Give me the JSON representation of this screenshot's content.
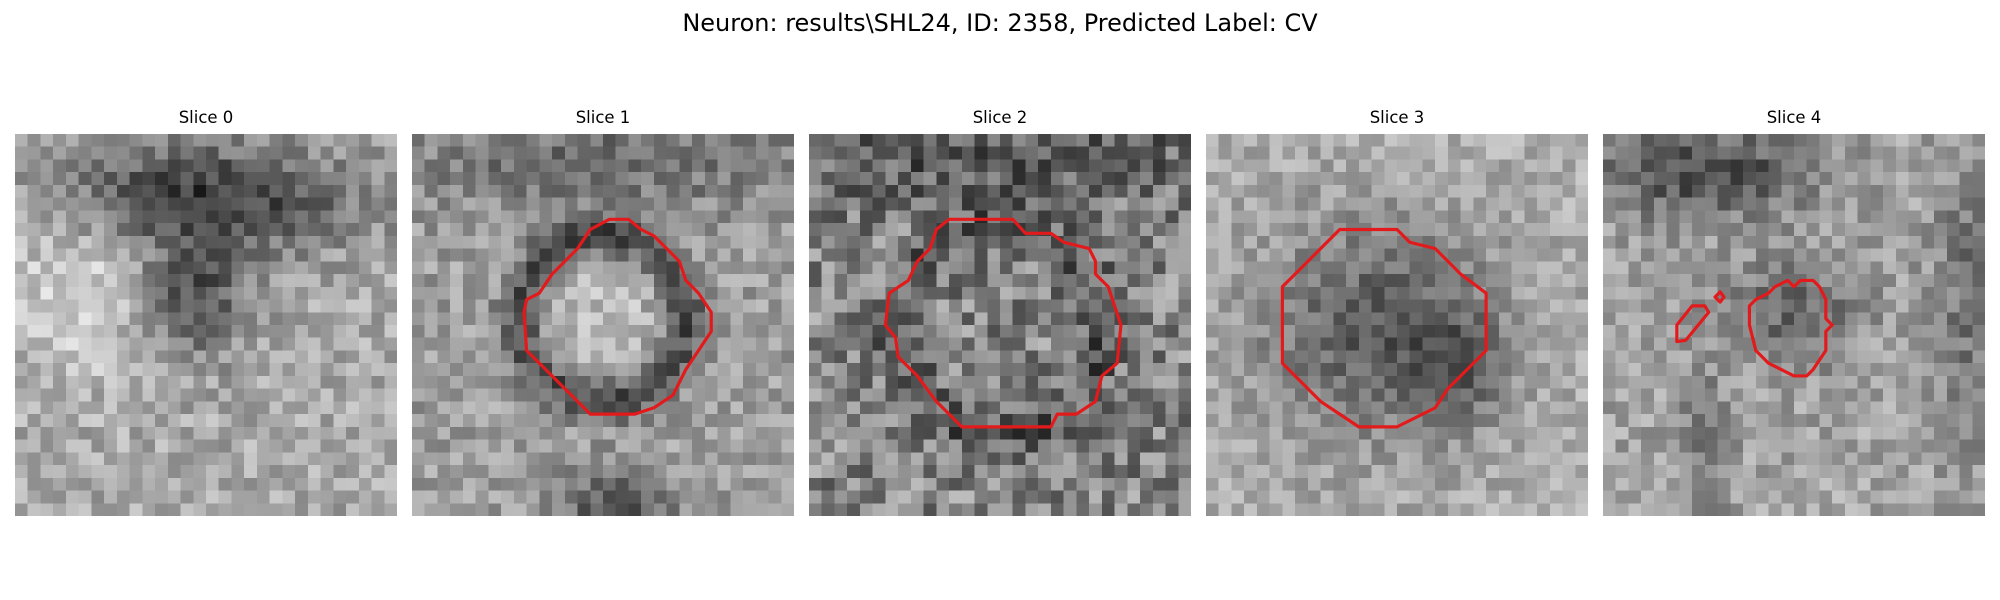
{
  "figure": {
    "title": "Neuron: results\\SHL24, ID: 2358, Predicted Label: CV"
  },
  "panels": [
    {
      "title": "Slice 0",
      "has_contour": false
    },
    {
      "title": "Slice 1",
      "has_contour": true
    },
    {
      "title": "Slice 2",
      "has_contour": true
    },
    {
      "title": "Slice 3",
      "has_contour": true
    },
    {
      "title": "Slice 4",
      "has_contour": true
    }
  ],
  "style": {
    "contour_color": "#e31a1c",
    "colormap": "gray"
  }
}
